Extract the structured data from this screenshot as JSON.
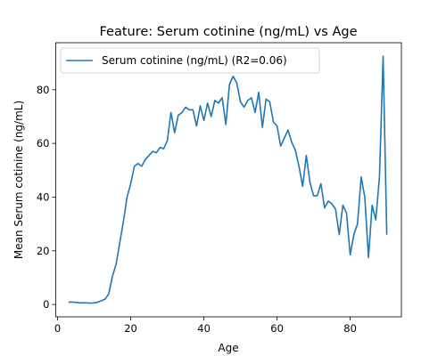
{
  "chart_data": {
    "type": "line",
    "title": "Feature: Serum cotinine (ng/mL) vs Age",
    "xlabel": "Age",
    "ylabel": "Mean Serum cotinine (ng/mL)",
    "xlim": [
      -0.5,
      94
    ],
    "ylim": [
      -4.6,
      97.5
    ],
    "xticks": [
      0,
      20,
      40,
      60,
      80
    ],
    "yticks": [
      0,
      20,
      40,
      60,
      80
    ],
    "grid": false,
    "legend_position": "top-left",
    "series": [
      {
        "name": "Serum cotinine (ng/mL) (R2=0.06)",
        "color": "#1f77b4",
        "x": [
          3,
          4,
          5,
          6,
          7,
          8,
          9,
          10,
          11,
          12,
          13,
          14,
          15,
          16,
          17,
          18,
          19,
          20,
          21,
          22,
          23,
          24,
          25,
          26,
          27,
          28,
          29,
          30,
          31,
          32,
          33,
          34,
          35,
          36,
          37,
          38,
          39,
          40,
          41,
          42,
          43,
          44,
          45,
          46,
          47,
          48,
          49,
          50,
          51,
          52,
          53,
          54,
          55,
          56,
          57,
          58,
          59,
          60,
          61,
          62,
          63,
          64,
          65,
          66,
          67,
          68,
          69,
          70,
          71,
          72,
          73,
          74,
          75,
          76,
          77,
          78,
          79,
          80,
          81,
          82,
          83,
          84,
          85,
          86,
          87,
          88,
          89,
          90
        ],
        "values": [
          0.9,
          0.9,
          0.8,
          0.6,
          0.6,
          0.6,
          0.5,
          0.6,
          0.9,
          1.4,
          2.0,
          4.0,
          10.5,
          15.0,
          23.0,
          31.0,
          40.0,
          45.0,
          51.5,
          52.5,
          51.5,
          54.0,
          55.5,
          57.0,
          56.5,
          58.5,
          58.0,
          61.0,
          71.5,
          64.0,
          70.5,
          71.5,
          73.5,
          72.5,
          72.5,
          66.5,
          74.0,
          68.5,
          75.0,
          70.0,
          76.0,
          75.0,
          77.0,
          67.0,
          82.0,
          85.0,
          82.5,
          75.5,
          73.5,
          76.0,
          77.0,
          71.5,
          79.0,
          66.0,
          76.5,
          75.5,
          68.0,
          66.5,
          59.0,
          62.0,
          65.0,
          60.5,
          57.5,
          51.5,
          44.0,
          55.5,
          45.5,
          40.5,
          40.5,
          45.0,
          36.0,
          38.5,
          37.5,
          35.5,
          26.0,
          37.0,
          34.0,
          18.5,
          26.0,
          30.0,
          47.5,
          40.0,
          17.5,
          37.0,
          31.5,
          47.5,
          92.5,
          26.0
        ]
      }
    ]
  }
}
